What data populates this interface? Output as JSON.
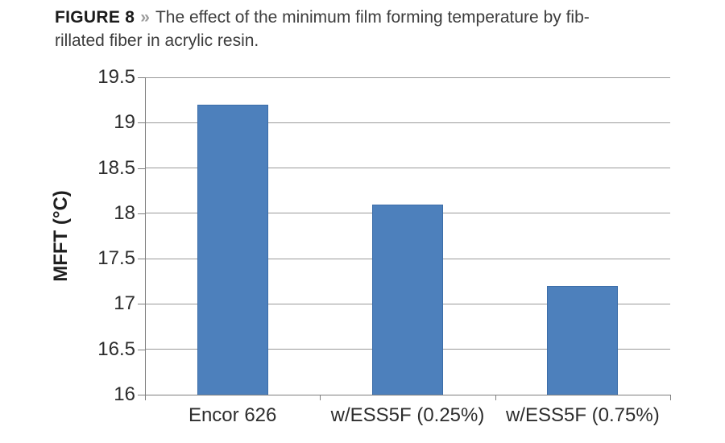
{
  "caption": {
    "figure_label": "FIGURE 8",
    "separator": "»",
    "line1": "The effect of the minimum film forming temperature by fib-",
    "line2": "rillated fiber in acrylic resin."
  },
  "chart_data": {
    "type": "bar",
    "title": "FIGURE 8 » The effect of the minimum film forming temperature by fibrillated fiber in acrylic resin.",
    "categories": [
      "Encor 626",
      "w/ESS5F (0.25%)",
      "w/ESS5F (0.75%)"
    ],
    "values": [
      19.2,
      18.1,
      17.2
    ],
    "xlabel": "",
    "ylabel": "MFFT (°C)",
    "ylim": [
      16,
      19.5
    ],
    "yticks": [
      16,
      16.5,
      17,
      17.5,
      18,
      18.5,
      19,
      19.5
    ],
    "grid": true,
    "legend": "none",
    "bar_color": "#4d80bc",
    "bar_border_color": "#3c6da8",
    "gridline_color": "#9a9a9a",
    "axis_color": "#7f7f7f"
  }
}
